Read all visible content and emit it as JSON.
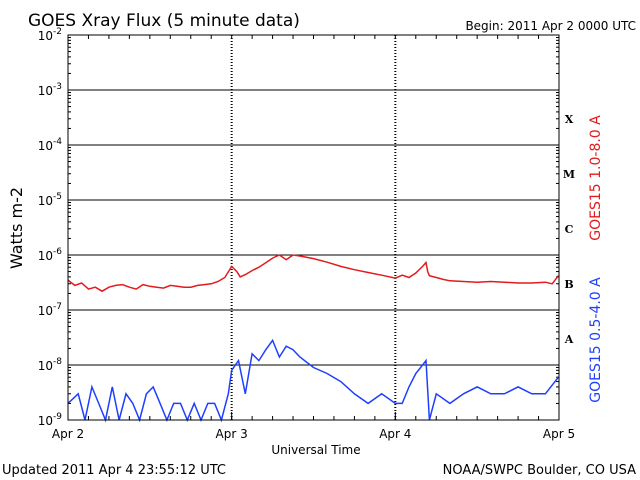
{
  "header": {
    "title": "GOES Xray Flux (5 minute data)",
    "begin": "Begin:  2011 Apr 2 0000 UTC"
  },
  "footer": {
    "updated": "Updated 2011 Apr  4 23:55:12 UTC",
    "credit": "NOAA/SWPC Boulder, CO USA"
  },
  "chart_data": {
    "type": "line",
    "title": "GOES Xray Flux (5 minute data)",
    "xlabel": "Universal Time",
    "ylabel": "Watts m-2",
    "y_scale": "log",
    "ylim": [
      1e-09,
      0.01
    ],
    "xlim": [
      "2011-04-02 00:00",
      "2011-04-05 00:00"
    ],
    "x_ticks": [
      "Apr 2",
      "Apr 3",
      "Apr 4",
      "Apr 5"
    ],
    "y_ticks": [
      {
        "value": 1e-09,
        "label": "10^-9"
      },
      {
        "value": 1e-08,
        "label": "10^-8"
      },
      {
        "value": 1e-07,
        "label": "10^-7"
      },
      {
        "value": 1e-06,
        "label": "10^-6"
      },
      {
        "value": 1e-05,
        "label": "10^-5"
      },
      {
        "value": 0.0001,
        "label": "10^-4"
      },
      {
        "value": 0.001,
        "label": "10^-3"
      },
      {
        "value": 0.01,
        "label": "10^-2"
      }
    ],
    "flare_classes": [
      {
        "label": "A",
        "value": 3e-08
      },
      {
        "label": "B",
        "value": 3e-07
      },
      {
        "label": "C",
        "value": 3e-06
      },
      {
        "label": "M",
        "value": 3e-05
      },
      {
        "label": "X",
        "value": 0.0003
      }
    ],
    "grid": true,
    "series": [
      {
        "name": "GOES15 1.0-8.0 A",
        "color": "#e41a1c",
        "x": [
          "2011-04-02 00:00",
          "2011-04-02 01:00",
          "2011-04-02 02:00",
          "2011-04-02 03:00",
          "2011-04-02 04:00",
          "2011-04-02 05:00",
          "2011-04-02 06:00",
          "2011-04-02 07:00",
          "2011-04-02 08:00",
          "2011-04-02 09:00",
          "2011-04-02 10:00",
          "2011-04-02 11:00",
          "2011-04-02 12:00",
          "2011-04-02 13:00",
          "2011-04-02 14:00",
          "2011-04-02 15:00",
          "2011-04-02 16:00",
          "2011-04-02 17:00",
          "2011-04-02 18:00",
          "2011-04-02 19:00",
          "2011-04-02 20:00",
          "2011-04-02 21:00",
          "2011-04-02 22:00",
          "2011-04-02 23:00",
          "2011-04-03 00:00",
          "2011-04-03 00:45",
          "2011-04-03 01:15",
          "2011-04-03 02:00",
          "2011-04-03 03:00",
          "2011-04-03 04:00",
          "2011-04-03 05:00",
          "2011-04-03 06:00",
          "2011-04-03 07:00",
          "2011-04-03 08:00",
          "2011-04-03 09:00",
          "2011-04-03 10:00",
          "2011-04-03 12:00",
          "2011-04-03 14:00",
          "2011-04-03 16:00",
          "2011-04-03 18:00",
          "2011-04-03 20:00",
          "2011-04-03 22:00",
          "2011-04-04 00:00",
          "2011-04-04 01:00",
          "2011-04-04 02:00",
          "2011-04-04 03:00",
          "2011-04-04 04:00",
          "2011-04-04 04:30",
          "2011-04-04 04:45",
          "2011-04-04 05:00",
          "2011-04-04 06:00",
          "2011-04-04 07:00",
          "2011-04-04 08:00",
          "2011-04-04 10:00",
          "2011-04-04 12:00",
          "2011-04-04 14:00",
          "2011-04-04 16:00",
          "2011-04-04 18:00",
          "2011-04-04 20:00",
          "2011-04-04 22:00",
          "2011-04-04 23:00",
          "2011-04-04 23:55"
        ],
        "y": [
          3.5e-07,
          2.8e-07,
          3.1e-07,
          2.4e-07,
          2.6e-07,
          2.2e-07,
          2.6e-07,
          2.8e-07,
          2.9e-07,
          2.6e-07,
          2.4e-07,
          2.9e-07,
          2.7e-07,
          2.6e-07,
          2.5e-07,
          2.8e-07,
          2.7e-07,
          2.6e-07,
          2.6e-07,
          2.8e-07,
          2.9e-07,
          3e-07,
          3.3e-07,
          3.9e-07,
          6.2e-07,
          5e-07,
          4e-07,
          4.4e-07,
          5.2e-07,
          6e-07,
          7.2e-07,
          8.8e-07,
          1e-06,
          8.2e-07,
          1e-06,
          9.6e-07,
          8.6e-07,
          7.4e-07,
          6.2e-07,
          5.4e-07,
          4.8e-07,
          4.3e-07,
          3.8e-07,
          4.3e-07,
          3.9e-07,
          4.7e-07,
          6.2e-07,
          7.3e-07,
          5e-07,
          4.2e-07,
          3.9e-07,
          3.6e-07,
          3.4e-07,
          3.3e-07,
          3.2e-07,
          3.3e-07,
          3.2e-07,
          3.1e-07,
          3.1e-07,
          3.2e-07,
          3e-07,
          4.2e-07
        ]
      },
      {
        "name": "GOES15 0.5-4.0 A",
        "color": "#1f3fff",
        "x": [
          "2011-04-02 00:00",
          "2011-04-02 01:30",
          "2011-04-02 02:30",
          "2011-04-02 03:30",
          "2011-04-02 04:30",
          "2011-04-02 05:30",
          "2011-04-02 06:30",
          "2011-04-02 07:30",
          "2011-04-02 08:30",
          "2011-04-02 09:30",
          "2011-04-02 10:30",
          "2011-04-02 11:30",
          "2011-04-02 12:30",
          "2011-04-02 13:30",
          "2011-04-02 14:30",
          "2011-04-02 15:30",
          "2011-04-02 16:30",
          "2011-04-02 17:30",
          "2011-04-02 18:30",
          "2011-04-02 19:30",
          "2011-04-02 20:30",
          "2011-04-02 21:30",
          "2011-04-02 22:30",
          "2011-04-02 23:30",
          "2011-04-03 00:00",
          "2011-04-03 01:00",
          "2011-04-03 01:30",
          "2011-04-03 02:00",
          "2011-04-03 03:00",
          "2011-04-03 04:00",
          "2011-04-03 05:00",
          "2011-04-03 06:00",
          "2011-04-03 07:00",
          "2011-04-03 08:00",
          "2011-04-03 09:00",
          "2011-04-03 10:00",
          "2011-04-03 12:00",
          "2011-04-03 14:00",
          "2011-04-03 16:00",
          "2011-04-03 18:00",
          "2011-04-03 20:00",
          "2011-04-03 22:00",
          "2011-04-04 00:00",
          "2011-04-04 01:00",
          "2011-04-04 02:00",
          "2011-04-04 03:00",
          "2011-04-04 04:00",
          "2011-04-04 04:30",
          "2011-04-04 05:00",
          "2011-04-04 06:00",
          "2011-04-04 08:00",
          "2011-04-04 10:00",
          "2011-04-04 12:00",
          "2011-04-04 14:00",
          "2011-04-04 16:00",
          "2011-04-04 18:00",
          "2011-04-04 20:00",
          "2011-04-04 22:00",
          "2011-04-04 23:55"
        ],
        "y": [
          2e-09,
          3e-09,
          1e-09,
          4e-09,
          2e-09,
          1e-09,
          4e-09,
          1e-09,
          3e-09,
          2e-09,
          1e-09,
          3e-09,
          4e-09,
          2e-09,
          1e-09,
          2e-09,
          2e-09,
          1e-09,
          2e-09,
          1e-09,
          2e-09,
          2e-09,
          1e-09,
          3e-09,
          8e-09,
          1.2e-08,
          6e-09,
          3e-09,
          1.6e-08,
          1.2e-08,
          1.9e-08,
          2.8e-08,
          1.4e-08,
          2.2e-08,
          1.9e-08,
          1.4e-08,
          9e-09,
          7e-09,
          5e-09,
          3e-09,
          2e-09,
          3e-09,
          2e-09,
          2e-09,
          4e-09,
          7e-09,
          1e-08,
          1.2e-08,
          1e-09,
          3e-09,
          2e-09,
          3e-09,
          4e-09,
          3e-09,
          3e-09,
          4e-09,
          3e-09,
          3e-09,
          6e-09
        ]
      }
    ]
  }
}
